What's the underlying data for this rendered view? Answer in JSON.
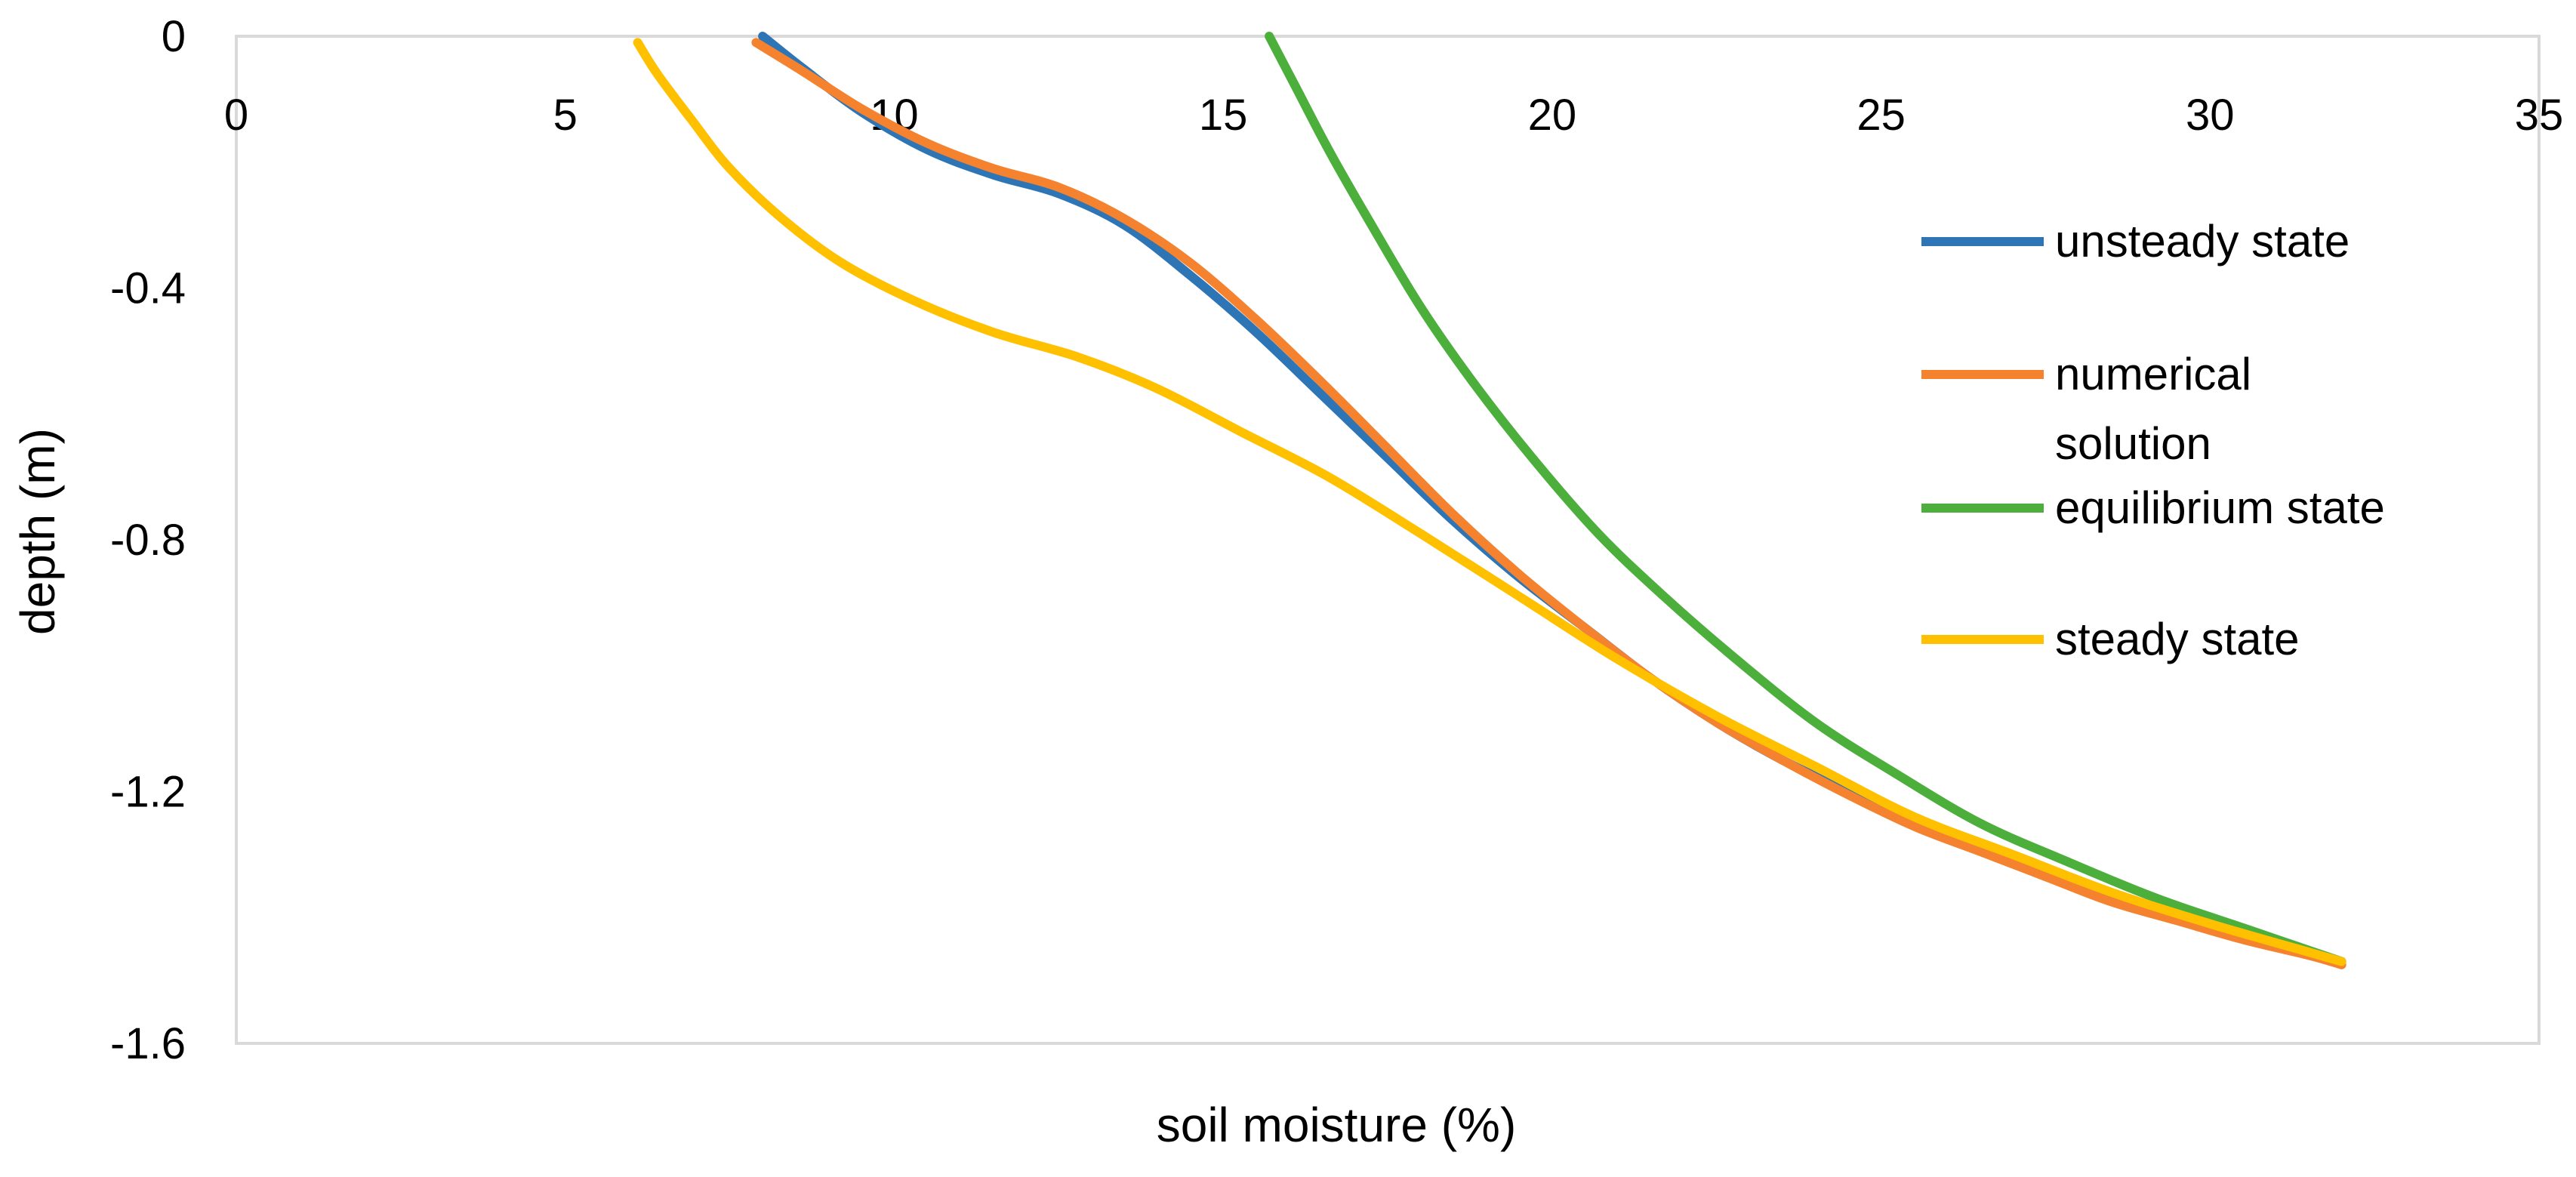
{
  "chart_data": {
    "type": "line",
    "title": "",
    "xlabel": "soil moisture (%)",
    "ylabel": "depth (m)",
    "xlim": [
      0,
      35
    ],
    "ylim": [
      -1.6,
      0
    ],
    "x_ticks": [
      "0",
      "5",
      "10",
      "15",
      "20",
      "25",
      "30",
      "35"
    ],
    "y_ticks": [
      "0",
      "-0.4",
      "-0.8",
      "-1.2",
      "-1.6"
    ],
    "grid": false,
    "legend_position": "right",
    "series": [
      {
        "name": "unsteady state",
        "color": "#2E75B6",
        "points": [
          [
            8.0,
            0.0
          ],
          [
            8.6,
            -0.05
          ],
          [
            9.5,
            -0.12
          ],
          [
            10.5,
            -0.18
          ],
          [
            11.5,
            -0.22
          ],
          [
            12.5,
            -0.25
          ],
          [
            13.5,
            -0.3
          ],
          [
            14.5,
            -0.38
          ],
          [
            15.5,
            -0.47
          ],
          [
            16.5,
            -0.57
          ],
          [
            17.5,
            -0.67
          ],
          [
            18.5,
            -0.77
          ],
          [
            19.5,
            -0.86
          ],
          [
            20.5,
            -0.94
          ],
          [
            21.5,
            -1.02
          ],
          [
            22.5,
            -1.09
          ],
          [
            23.5,
            -1.15
          ],
          [
            24.5,
            -1.2
          ],
          [
            25.5,
            -1.25
          ],
          [
            26.5,
            -1.29
          ],
          [
            27.5,
            -1.33
          ],
          [
            28.5,
            -1.37
          ],
          [
            29.5,
            -1.4
          ],
          [
            30.5,
            -1.43
          ],
          [
            31.5,
            -1.455
          ],
          [
            32.0,
            -1.47
          ]
        ]
      },
      {
        "name": "numerical solution",
        "color": "#F4822E",
        "points": [
          [
            7.9,
            -0.01
          ],
          [
            8.6,
            -0.055
          ],
          [
            9.5,
            -0.115
          ],
          [
            10.5,
            -0.17
          ],
          [
            11.5,
            -0.21
          ],
          [
            12.5,
            -0.24
          ],
          [
            13.5,
            -0.29
          ],
          [
            14.5,
            -0.36
          ],
          [
            15.5,
            -0.45
          ],
          [
            16.5,
            -0.55
          ],
          [
            17.5,
            -0.655
          ],
          [
            18.5,
            -0.76
          ],
          [
            19.5,
            -0.855
          ],
          [
            20.5,
            -0.94
          ],
          [
            21.5,
            -1.02
          ],
          [
            22.5,
            -1.09
          ],
          [
            23.5,
            -1.15
          ],
          [
            24.5,
            -1.205
          ],
          [
            25.5,
            -1.255
          ],
          [
            26.5,
            -1.295
          ],
          [
            27.5,
            -1.335
          ],
          [
            28.5,
            -1.375
          ],
          [
            29.5,
            -1.405
          ],
          [
            30.5,
            -1.435
          ],
          [
            31.5,
            -1.46
          ],
          [
            32.0,
            -1.475
          ]
        ]
      },
      {
        "name": "equilibrium state",
        "color": "#4CAF3C",
        "points": [
          [
            15.7,
            0.0
          ],
          [
            16.1,
            -0.08
          ],
          [
            16.6,
            -0.18
          ],
          [
            17.2,
            -0.29
          ],
          [
            18.0,
            -0.43
          ],
          [
            18.8,
            -0.55
          ],
          [
            19.7,
            -0.67
          ],
          [
            20.7,
            -0.79
          ],
          [
            21.7,
            -0.89
          ],
          [
            22.8,
            -0.99
          ],
          [
            24.0,
            -1.09
          ],
          [
            25.2,
            -1.17
          ],
          [
            26.5,
            -1.25
          ],
          [
            27.8,
            -1.31
          ],
          [
            29.2,
            -1.37
          ],
          [
            30.6,
            -1.42
          ],
          [
            32.0,
            -1.47
          ]
        ]
      },
      {
        "name": "steady state",
        "color": "#FFC000",
        "points": [
          [
            6.1,
            -0.01
          ],
          [
            6.4,
            -0.06
          ],
          [
            6.9,
            -0.13
          ],
          [
            7.5,
            -0.21
          ],
          [
            8.3,
            -0.29
          ],
          [
            9.2,
            -0.36
          ],
          [
            10.3,
            -0.42
          ],
          [
            11.5,
            -0.47
          ],
          [
            12.8,
            -0.51
          ],
          [
            14.0,
            -0.56
          ],
          [
            15.3,
            -0.63
          ],
          [
            16.6,
            -0.7
          ],
          [
            18.0,
            -0.79
          ],
          [
            19.5,
            -0.89
          ],
          [
            21.0,
            -0.99
          ],
          [
            22.5,
            -1.08
          ],
          [
            24.0,
            -1.16
          ],
          [
            25.5,
            -1.24
          ],
          [
            27.0,
            -1.3
          ],
          [
            28.5,
            -1.36
          ],
          [
            30.0,
            -1.41
          ],
          [
            31.5,
            -1.455
          ],
          [
            32.0,
            -1.47
          ]
        ]
      }
    ]
  }
}
